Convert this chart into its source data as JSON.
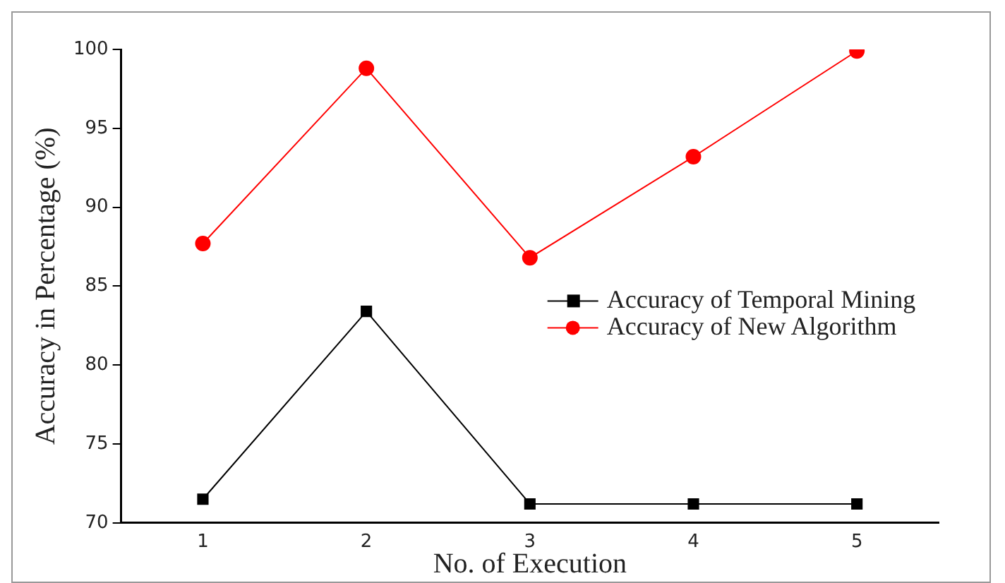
{
  "chart_data": {
    "type": "line",
    "xlabel": "No. of Execution",
    "ylabel": "Accuracy in Percentage (%)",
    "x": [
      1,
      2,
      3,
      4,
      5
    ],
    "xlim": [
      0.5,
      5.5
    ],
    "xticks": [
      1,
      2,
      3,
      4,
      5
    ],
    "ylim": [
      70,
      100
    ],
    "yticks": [
      70,
      75,
      80,
      85,
      90,
      95,
      100
    ],
    "series": [
      {
        "name": "Accuracy of Temporal Mining",
        "color": "#000000",
        "marker": "square",
        "values": [
          71.5,
          83.4,
          71.2,
          71.2,
          71.2
        ]
      },
      {
        "name": "Accuracy of New Algorithm",
        "color": "#ff0000",
        "marker": "circle",
        "values": [
          87.7,
          98.8,
          86.8,
          93.2,
          99.9
        ]
      }
    ],
    "grid": false,
    "legend": "right",
    "line_style": "solid"
  }
}
